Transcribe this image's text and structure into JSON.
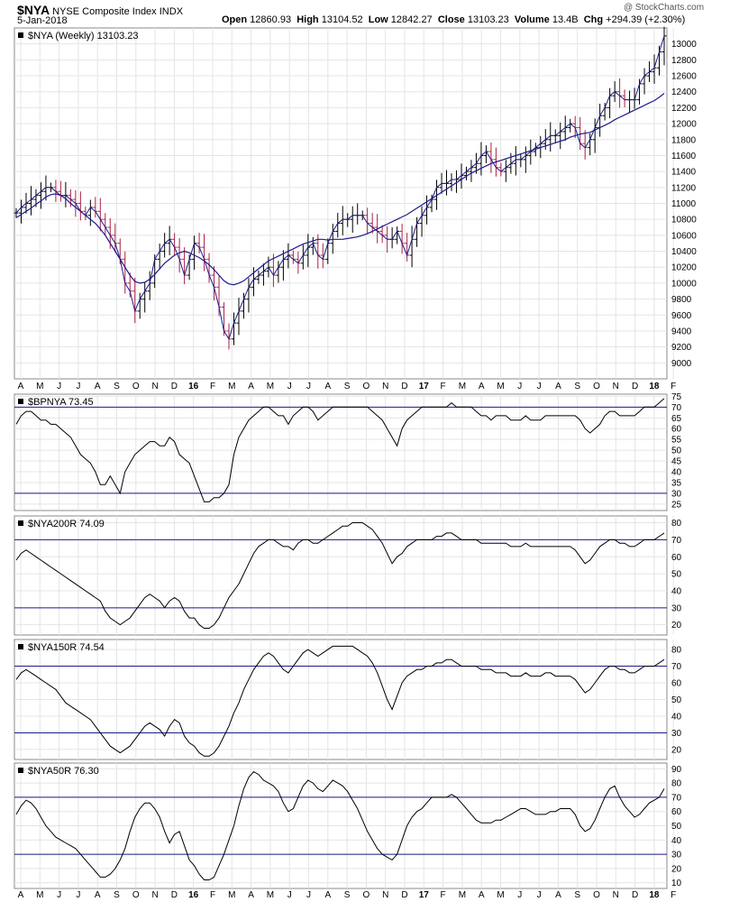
{
  "header": {
    "symbol": "$NYA",
    "name": "NYSE Composite Index",
    "exchange": "INDX",
    "date": "5-Jan-2018",
    "open_label": "Open",
    "open": "12860.93",
    "high_label": "High",
    "high": "13104.52",
    "low_label": "Low",
    "low": "12842.27",
    "close_label": "Close",
    "close": "13103.23",
    "volume_label": "Volume",
    "volume": "13.4B",
    "chg_label": "Chg",
    "chg": "+294.39 (+2.30%)",
    "watermark": "@ StockCharts.com"
  },
  "colors": {
    "up": "#000000",
    "down": "#aa2244",
    "ma": "#1c1c8c",
    "ref": "#1c1c8c",
    "grid": "#e4e4e4"
  },
  "x_axis": {
    "labels": [
      "A",
      "M",
      "J",
      "J",
      "A",
      "S",
      "O",
      "N",
      "D",
      "16",
      "F",
      "M",
      "A",
      "M",
      "J",
      "J",
      "A",
      "S",
      "O",
      "N",
      "D",
      "17",
      "F",
      "M",
      "A",
      "M",
      "J",
      "J",
      "A",
      "S",
      "O",
      "N",
      "D",
      "18",
      "F"
    ],
    "bold_labels": [
      "16",
      "17",
      "18"
    ]
  },
  "chart_data": [
    {
      "type": "ohlc",
      "legend": "$NYA (Weekly) 13103.23",
      "ylim": [
        8800,
        13200
      ],
      "yticks": [
        9000,
        9200,
        9400,
        9600,
        9800,
        10000,
        10200,
        10400,
        10600,
        10800,
        11000,
        11200,
        11400,
        11600,
        11800,
        12000,
        12200,
        12400,
        12600,
        12800,
        13000
      ],
      "series": [
        {
          "name": "close_weekly",
          "values": [
            10880,
            10950,
            11000,
            11050,
            11100,
            11150,
            11200,
            11200,
            11150,
            11100,
            11100,
            11050,
            11000,
            10900,
            10850,
            10950,
            10900,
            10800,
            10700,
            10600,
            10500,
            10300,
            10000,
            9900,
            9650,
            9800,
            9900,
            10000,
            10300,
            10400,
            10500,
            10550,
            10450,
            10300,
            10100,
            10300,
            10500,
            10450,
            10300,
            10100,
            9950,
            9700,
            9400,
            9300,
            9500,
            9650,
            9800,
            9950,
            10050,
            10100,
            10150,
            10200,
            10100,
            10200,
            10300,
            10350,
            10300,
            10250,
            10350,
            10450,
            10500,
            10350,
            10300,
            10500,
            10650,
            10750,
            10800,
            10800,
            10850,
            10850,
            10850,
            10750,
            10700,
            10650,
            10600,
            10550,
            10550,
            10650,
            10500,
            10350,
            10550,
            10750,
            10850,
            10950,
            11050,
            11200,
            11250,
            11250,
            11300,
            11300,
            11350,
            11400,
            11450,
            11500,
            11600,
            11650,
            11550,
            11450,
            11400,
            11450,
            11500,
            11550,
            11550,
            11600,
            11650,
            11700,
            11750,
            11800,
            11850,
            11850,
            11900,
            11950,
            12000,
            11950,
            11750,
            11700,
            11800,
            11950,
            12100,
            12200,
            12350,
            12400,
            12350,
            12300,
            12300,
            12300,
            12500,
            12600,
            12650,
            12700,
            12900,
            13100
          ]
        },
        {
          "name": "moving_average",
          "values": [
            10820,
            10860,
            10900,
            10940,
            10990,
            11030,
            11080,
            11110,
            11120,
            11100,
            11060,
            11000,
            10950,
            10900,
            10850,
            10800,
            10750,
            10680,
            10600,
            10500,
            10400,
            10300,
            10200,
            10100,
            10020,
            10000,
            10010,
            10050,
            10110,
            10180,
            10250,
            10300,
            10350,
            10380,
            10400,
            10380,
            10350,
            10320,
            10280,
            10230,
            10170,
            10100,
            10030,
            9990,
            9980,
            10000,
            10030,
            10080,
            10130,
            10180,
            10230,
            10280,
            10310,
            10340,
            10370,
            10400,
            10430,
            10460,
            10490,
            10510,
            10530,
            10550,
            10550,
            10540,
            10550,
            10550,
            10550,
            10560,
            10570,
            10580,
            10600,
            10620,
            10650,
            10680,
            10710,
            10740,
            10770,
            10800,
            10830,
            10860,
            10900,
            10940,
            10980,
            11020,
            11060,
            11100,
            11140,
            11180,
            11220,
            11260,
            11300,
            11340,
            11380,
            11410,
            11440,
            11470,
            11500,
            11520,
            11540,
            11560,
            11580,
            11600,
            11620,
            11640,
            11660,
            11680,
            11700,
            11720,
            11740,
            11760,
            11780,
            11800,
            11830,
            11850,
            11870,
            11880,
            11890,
            11920,
            11950,
            11980,
            12010,
            12050,
            12080,
            12110,
            12140,
            12170,
            12200,
            12230,
            12260,
            12290,
            12330,
            12380
          ]
        }
      ]
    },
    {
      "type": "line",
      "legend": "$BPNYA 73.45",
      "ylim": [
        22,
        76
      ],
      "yticks": [
        25,
        30,
        35,
        40,
        45,
        50,
        55,
        60,
        65,
        70,
        75
      ],
      "ref_lines": [
        30,
        70
      ],
      "series": [
        {
          "name": "$BPNYA",
          "values": [
            62,
            66,
            68,
            68,
            66,
            64,
            64,
            62,
            62,
            60,
            58,
            56,
            52,
            48,
            46,
            44,
            40,
            34,
            34,
            38,
            34,
            30,
            40,
            44,
            48,
            50,
            52,
            54,
            54,
            52,
            52,
            56,
            54,
            48,
            46,
            44,
            38,
            32,
            26,
            26,
            28,
            28,
            30,
            34,
            48,
            56,
            60,
            64,
            66,
            68,
            70,
            70,
            68,
            66,
            66,
            62,
            66,
            68,
            70,
            70,
            68,
            64,
            66,
            68,
            70,
            70,
            70,
            70,
            70,
            70,
            70,
            70,
            68,
            66,
            64,
            60,
            56,
            52,
            60,
            64,
            66,
            68,
            70,
            70,
            70,
            70,
            70,
            70,
            72,
            70,
            70,
            70,
            70,
            68,
            66,
            66,
            64,
            66,
            66,
            66,
            64,
            64,
            64,
            66,
            64,
            64,
            64,
            66,
            66,
            66,
            66,
            66,
            66,
            66,
            64,
            60,
            58,
            60,
            62,
            66,
            68,
            68,
            66,
            66,
            66,
            66,
            68,
            70,
            70,
            70,
            72,
            74
          ]
        }
      ]
    },
    {
      "type": "line",
      "legend": "$NYA200R 74.09",
      "ylim": [
        14,
        84
      ],
      "yticks": [
        20,
        30,
        40,
        50,
        60,
        70,
        80
      ],
      "ref_lines": [
        30,
        70
      ],
      "series": [
        {
          "name": "$NYA200R",
          "values": [
            58,
            62,
            64,
            62,
            60,
            58,
            56,
            54,
            52,
            50,
            48,
            46,
            44,
            42,
            40,
            38,
            36,
            34,
            28,
            24,
            22,
            20,
            22,
            24,
            28,
            32,
            36,
            38,
            36,
            34,
            30,
            34,
            36,
            34,
            28,
            24,
            24,
            20,
            18,
            18,
            20,
            24,
            30,
            36,
            40,
            44,
            50,
            56,
            62,
            66,
            68,
            70,
            70,
            68,
            66,
            66,
            64,
            68,
            70,
            70,
            68,
            68,
            70,
            72,
            74,
            76,
            78,
            78,
            80,
            80,
            80,
            78,
            76,
            72,
            68,
            62,
            56,
            60,
            62,
            66,
            68,
            70,
            70,
            70,
            70,
            72,
            72,
            74,
            74,
            72,
            70,
            70,
            70,
            70,
            68,
            68,
            68,
            68,
            68,
            68,
            66,
            66,
            66,
            68,
            66,
            66,
            66,
            66,
            66,
            66,
            66,
            66,
            66,
            64,
            60,
            56,
            58,
            62,
            66,
            68,
            70,
            70,
            68,
            68,
            66,
            66,
            68,
            70,
            70,
            70,
            72,
            74
          ]
        }
      ]
    },
    {
      "type": "line",
      "legend": "$NYA150R 74.54",
      "ylim": [
        14,
        86
      ],
      "yticks": [
        20,
        30,
        40,
        50,
        60,
        70,
        80
      ],
      "ref_lines": [
        30,
        70
      ],
      "series": [
        {
          "name": "$NYA150R",
          "values": [
            62,
            66,
            68,
            66,
            64,
            62,
            60,
            58,
            56,
            52,
            48,
            46,
            44,
            42,
            40,
            38,
            34,
            30,
            26,
            22,
            20,
            18,
            20,
            22,
            26,
            30,
            34,
            36,
            34,
            32,
            28,
            34,
            38,
            36,
            28,
            24,
            22,
            18,
            16,
            16,
            18,
            22,
            28,
            34,
            42,
            48,
            56,
            62,
            68,
            72,
            76,
            78,
            76,
            72,
            68,
            66,
            70,
            74,
            78,
            80,
            78,
            76,
            78,
            80,
            82,
            82,
            82,
            82,
            82,
            80,
            78,
            76,
            72,
            66,
            58,
            50,
            44,
            52,
            60,
            64,
            66,
            68,
            68,
            70,
            70,
            72,
            72,
            74,
            74,
            72,
            70,
            70,
            70,
            70,
            68,
            68,
            68,
            66,
            66,
            66,
            64,
            64,
            64,
            66,
            64,
            64,
            64,
            66,
            66,
            64,
            64,
            64,
            64,
            62,
            58,
            54,
            56,
            60,
            64,
            68,
            70,
            70,
            68,
            68,
            66,
            66,
            68,
            70,
            70,
            70,
            72,
            74
          ]
        }
      ]
    },
    {
      "type": "line",
      "legend": "$NYA50R 76.30",
      "ylim": [
        6,
        94
      ],
      "yticks": [
        10,
        20,
        30,
        40,
        50,
        60,
        70,
        80,
        90
      ],
      "ref_lines": [
        30,
        70
      ],
      "series": [
        {
          "name": "$NYA50R",
          "values": [
            58,
            64,
            68,
            66,
            62,
            56,
            50,
            46,
            42,
            40,
            38,
            36,
            34,
            30,
            26,
            22,
            18,
            14,
            14,
            16,
            20,
            26,
            34,
            46,
            56,
            62,
            66,
            66,
            62,
            56,
            46,
            38,
            44,
            46,
            36,
            26,
            22,
            16,
            12,
            12,
            14,
            22,
            30,
            40,
            50,
            64,
            76,
            84,
            88,
            86,
            82,
            80,
            78,
            74,
            66,
            60,
            62,
            70,
            78,
            82,
            80,
            76,
            74,
            78,
            82,
            80,
            78,
            74,
            68,
            62,
            54,
            46,
            40,
            34,
            30,
            28,
            26,
            30,
            40,
            50,
            56,
            60,
            62,
            66,
            70,
            70,
            70,
            70,
            72,
            70,
            66,
            62,
            58,
            54,
            52,
            52,
            52,
            54,
            54,
            56,
            58,
            60,
            62,
            62,
            60,
            58,
            58,
            58,
            60,
            60,
            62,
            62,
            62,
            58,
            50,
            46,
            48,
            54,
            62,
            70,
            76,
            78,
            70,
            64,
            60,
            56,
            58,
            62,
            66,
            68,
            70,
            76
          ]
        }
      ]
    }
  ]
}
